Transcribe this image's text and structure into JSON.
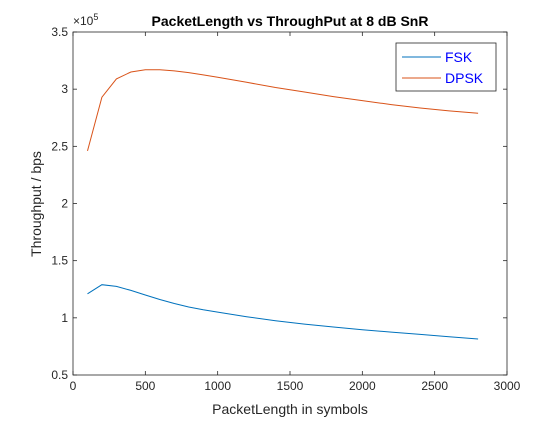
{
  "chart_data": {
    "type": "line",
    "title": "PacketLength vs ThroughPut at 8 dB SnR",
    "xlabel": "PacketLength in symbols",
    "ylabel": "Throughput / bps",
    "xlim": [
      0,
      3000
    ],
    "ylim": [
      50000,
      350000
    ],
    "xticks": [
      0,
      500,
      1000,
      1500,
      2000,
      2500,
      3000
    ],
    "xtick_labels": [
      "0",
      "500",
      "1000",
      "1500",
      "2000",
      "2500",
      "3000"
    ],
    "yticks": [
      50000,
      100000,
      150000,
      200000,
      250000,
      300000,
      350000
    ],
    "ytick_labels": [
      "0.5",
      "1",
      "1.5",
      "2",
      "2.5",
      "3",
      "3.5"
    ],
    "y_exponent": {
      "base": "×10",
      "power": "5"
    },
    "grid": false,
    "box": true,
    "legend_position": "top-right",
    "series": [
      {
        "name": "FSK",
        "color": "#0072BD",
        "x": [
          100,
          200,
          300,
          400,
          500,
          600,
          700,
          800,
          900,
          1000,
          1200,
          1400,
          1600,
          1800,
          2000,
          2200,
          2400,
          2600,
          2800
        ],
        "y": [
          121000,
          129000,
          127500,
          124000,
          120000,
          116000,
          112500,
          109500,
          107000,
          105000,
          101000,
          97500,
          94500,
          92000,
          89500,
          87500,
          85500,
          83500,
          81500
        ]
      },
      {
        "name": "DPSK",
        "color": "#D95319",
        "x": [
          100,
          200,
          300,
          400,
          500,
          600,
          700,
          800,
          900,
          1000,
          1200,
          1400,
          1600,
          1800,
          2000,
          2200,
          2400,
          2600,
          2800
        ],
        "y": [
          246000,
          293000,
          309000,
          315000,
          317000,
          317000,
          316000,
          314500,
          312500,
          310500,
          306000,
          301500,
          297500,
          293500,
          290000,
          286500,
          283500,
          281000,
          279000
        ]
      }
    ]
  }
}
